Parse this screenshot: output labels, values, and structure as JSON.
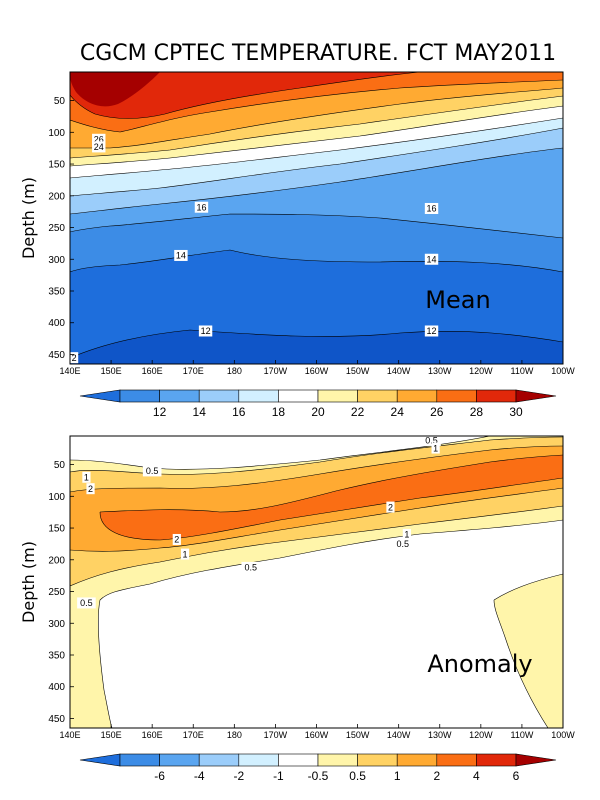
{
  "title": "CGCM CPTEC TEMPERATURE. FCT MAY2011",
  "chart_data": [
    {
      "type": "contour",
      "panel_label": "Mean",
      "ylabel": "Depth (m)",
      "x_ticks": [
        "140E",
        "150E",
        "160E",
        "170E",
        "180",
        "170W",
        "160W",
        "150W",
        "140W",
        "130W",
        "120W",
        "110W",
        "100W"
      ],
      "y_ticks": [
        50,
        100,
        150,
        200,
        250,
        300,
        350,
        400,
        450
      ],
      "ylim": [
        465,
        5
      ],
      "colorbar_labels": [
        "12",
        "14",
        "16",
        "18",
        "20",
        "22",
        "24",
        "26",
        "28",
        "30"
      ],
      "colorbar_colors": [
        "#1e6edc",
        "#3c8ce6",
        "#5aa5f0",
        "#9bcdfa",
        "#d2f0ff",
        "#ffffff",
        "#fff5aa",
        "#ffd264",
        "#ffaa32",
        "#fa6e14",
        "#e1280a",
        "#a50000"
      ],
      "contour_labels": [
        {
          "text": "26",
          "x": 147,
          "y": 111
        },
        {
          "text": "24",
          "x": 147,
          "y": 123
        },
        {
          "text": "16",
          "x": 172,
          "y": 218
        },
        {
          "text": "16",
          "x": 228,
          "y": 220
        },
        {
          "text": "14",
          "x": 167,
          "y": 294
        },
        {
          "text": "14",
          "x": 228,
          "y": 300
        },
        {
          "text": "12",
          "x": 173,
          "y": 413
        },
        {
          "text": "12",
          "x": 228,
          "y": 413
        },
        {
          "text": "2",
          "x": 141,
          "y": 455
        }
      ],
      "contour_label_units": "x in degrees east (0-360), y in depth (m)"
    },
    {
      "type": "contour",
      "panel_label": "Anomaly",
      "ylabel": "Depth (m)",
      "x_ticks": [
        "140E",
        "150E",
        "160E",
        "170E",
        "180",
        "170W",
        "160W",
        "150W",
        "140W",
        "130W",
        "120W",
        "110W",
        "100W"
      ],
      "y_ticks": [
        50,
        100,
        150,
        200,
        250,
        300,
        350,
        400,
        450
      ],
      "ylim": [
        465,
        5
      ],
      "colorbar_labels": [
        "-6",
        "-4",
        "-2",
        "-1",
        "-0.5",
        "0.5",
        "1",
        "2",
        "4",
        "6"
      ],
      "colorbar_colors": [
        "#1e6edc",
        "#3c8ce6",
        "#5aa5f0",
        "#9bcdfa",
        "#d2f0ff",
        "#ffffff",
        "#fff5aa",
        "#ffd264",
        "#ffaa32",
        "#fa6e14",
        "#e1280a",
        "#a50000"
      ],
      "contour_labels": [
        {
          "text": "0.5",
          "x": 228,
          "y": 12
        },
        {
          "text": "1",
          "x": 229,
          "y": 24
        },
        {
          "text": "0.5",
          "x": 160,
          "y": 60
        },
        {
          "text": "1",
          "x": 144,
          "y": 70
        },
        {
          "text": "2",
          "x": 145,
          "y": 88
        },
        {
          "text": "2",
          "x": 218,
          "y": 117
        },
        {
          "text": "1",
          "x": 222,
          "y": 160
        },
        {
          "text": "0.5",
          "x": 221,
          "y": 175
        },
        {
          "text": "2",
          "x": 166,
          "y": 168
        },
        {
          "text": "1",
          "x": 168,
          "y": 191
        },
        {
          "text": "0.5",
          "x": 184,
          "y": 212
        },
        {
          "text": "0.5",
          "x": 144,
          "y": 268
        }
      ],
      "contour_label_units": "x in degrees east (0-360), y in depth (m)"
    }
  ]
}
